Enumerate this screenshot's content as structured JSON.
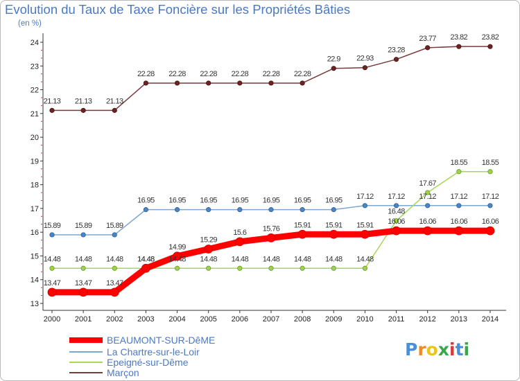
{
  "chart_data": {
    "type": "line",
    "title": "Evolution du Taux de Taxe Foncière sur les Propriétés Bâties",
    "subtitle": "(en %)",
    "ylim": [
      13,
      24
    ],
    "yticks": [
      "13",
      "14",
      "15",
      "16",
      "17",
      "18",
      "19",
      "20",
      "21",
      "22",
      "23",
      "24"
    ],
    "categories": [
      "2000",
      "2001",
      "2002",
      "2003",
      "2004",
      "2005",
      "2006",
      "2007",
      "2008",
      "2009",
      "2010",
      "2011",
      "2012",
      "2013",
      "2014"
    ],
    "grid": false,
    "series": [
      {
        "name": "BEAUMONT-SUR-DêME",
        "color": "#ff0000",
        "values": [
          13.47,
          13.47,
          13.47,
          14.48,
          14.99,
          15.29,
          15.6,
          15.76,
          15.91,
          15.91,
          15.91,
          16.06,
          16.06,
          16.06,
          16.06
        ],
        "labels": [
          "13.47",
          "13.47",
          "13.47",
          "14.48",
          "14.99",
          "15.29",
          "15.6",
          "15.76",
          "15.91",
          "15.91",
          "15.91",
          "16.06",
          "16.06",
          "16.06",
          "16.06"
        ]
      },
      {
        "name": "La Chartre-sur-le-Loir",
        "color": "#7aa7cf",
        "values": [
          15.89,
          15.89,
          15.89,
          16.95,
          16.95,
          16.95,
          16.95,
          16.95,
          16.95,
          16.95,
          17.12,
          17.12,
          17.12,
          17.12,
          17.12
        ],
        "labels": [
          "15.89",
          "15.89",
          "15.89",
          "16.95",
          "16.95",
          "16.95",
          "16.95",
          "16.95",
          "16.95",
          "16.95",
          "17.12",
          "17.12",
          "17.12",
          "17.12",
          "17.12"
        ]
      },
      {
        "name": "Epeigné-sur-Dême",
        "color": "#a6d65a",
        "values": [
          14.48,
          14.48,
          14.48,
          14.48,
          14.48,
          14.48,
          14.48,
          14.48,
          14.48,
          14.48,
          14.48,
          16.48,
          17.67,
          18.55,
          18.55
        ],
        "labels": [
          "14.48",
          "14.48",
          "14.48",
          "14.48",
          "14.48",
          "14.48",
          "14.48",
          "14.48",
          "14.48",
          "14.48",
          "14.48",
          "16.48",
          "17.67",
          "18.55",
          "18.55"
        ]
      },
      {
        "name": "Marçon",
        "color": "#7a3a3a",
        "values": [
          21.13,
          21.13,
          21.13,
          22.28,
          22.28,
          22.28,
          22.28,
          22.28,
          22.28,
          22.9,
          22.93,
          23.28,
          23.77,
          23.82,
          23.82
        ],
        "labels": [
          "21.13",
          "21.13",
          "21.13",
          "22.28",
          "22.28",
          "22.28",
          "22.28",
          "22.28",
          "22.28",
          "22.9",
          "22.93",
          "23.28",
          "23.77",
          "23.82",
          "23.82"
        ]
      }
    ]
  },
  "logo": {
    "text": "Proxiti",
    "letters": [
      "P",
      "r",
      "o",
      "x",
      "i",
      "t",
      "i"
    ]
  }
}
